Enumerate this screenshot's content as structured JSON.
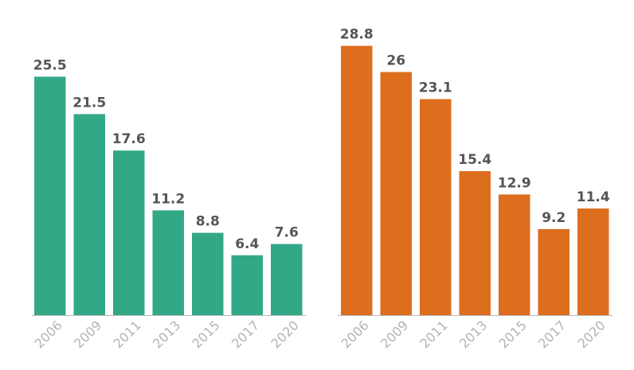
{
  "chart_data": [
    {
      "type": "bar",
      "title": "",
      "xlabel": "",
      "ylabel": "",
      "categories": [
        "2006",
        "2009",
        "2011",
        "2013",
        "2015",
        "2017",
        "2020"
      ],
      "values": [
        25.5,
        21.5,
        17.6,
        11.2,
        8.8,
        6.4,
        7.6
      ],
      "value_labels": [
        "25.5",
        "21.5",
        "17.6",
        "11.2",
        "8.8",
        "6.4",
        "7.6"
      ],
      "ylim": [
        0,
        30
      ],
      "color": "#33a886",
      "grid": false,
      "legend": "none"
    },
    {
      "type": "bar",
      "title": "",
      "xlabel": "",
      "ylabel": "",
      "categories": [
        "2006",
        "2009",
        "2011",
        "2013",
        "2015",
        "2017",
        "2020"
      ],
      "values": [
        28.8,
        26,
        23.1,
        15.4,
        12.9,
        9.2,
        11.4
      ],
      "value_labels": [
        "28.8",
        "26",
        "23.1",
        "15.4",
        "12.9",
        "9.2",
        "11.4"
      ],
      "ylim": [
        0,
        30
      ],
      "color": "#dc6e1e",
      "grid": false,
      "legend": "none"
    }
  ]
}
